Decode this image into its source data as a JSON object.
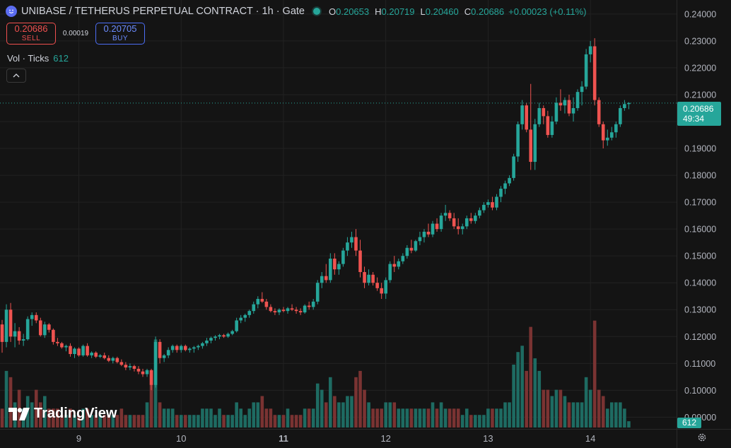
{
  "header": {
    "title": "UNIBASE / TETHERUS PERPETUAL CONTRACT · 1h · Gate",
    "ohlc": [
      {
        "k": "O",
        "v": "0.20653"
      },
      {
        "k": "H",
        "v": "0.20719"
      },
      {
        "k": "L",
        "v": "0.20460"
      },
      {
        "k": "C",
        "v": "0.20686"
      }
    ],
    "change": "+0.00023 (+0.11%)",
    "icon": "smiley-icon"
  },
  "trade": {
    "sell_price": "0.20686",
    "sell_label": "SELL",
    "spread": "0.00019",
    "buy_price": "0.20705",
    "buy_label": "BUY"
  },
  "volume_legend": {
    "label": "Vol · Ticks",
    "value": "612"
  },
  "last_price": {
    "price": "0.20686",
    "countdown": "49:34"
  },
  "volume_tag": "612",
  "brand": "TradingView",
  "colors": {
    "up": "#26a69a",
    "down": "#ef5350",
    "background": "#141414"
  },
  "chart_data": {
    "type": "candlestick",
    "title": "UNIBASE / TETHERUS PERPETUAL CONTRACT · 1h · Gate",
    "price_axis_ticks": [
      "0.24000",
      "0.23000",
      "0.22000",
      "0.21000",
      "0.20000",
      "0.19000",
      "0.18000",
      "0.17000",
      "0.16000",
      "0.15000",
      "0.14000",
      "0.13000",
      "0.12000",
      "0.11000",
      "0.10000",
      "0.09000"
    ],
    "ylim": [
      0.0855,
      0.2434
    ],
    "x_ticks": [
      {
        "label": "9",
        "index": 18,
        "bold": false
      },
      {
        "label": "10",
        "index": 42,
        "bold": false
      },
      {
        "label": "11",
        "index": 66,
        "bold": true
      },
      {
        "label": "12",
        "index": 90,
        "bold": false
      },
      {
        "label": "13",
        "index": 114,
        "bold": false
      },
      {
        "label": "14",
        "index": 138,
        "bold": false
      }
    ],
    "last_price": 0.20686,
    "grid": true,
    "candles": [
      [
        0.1245,
        0.1262,
        0.114,
        0.118,
        3
      ],
      [
        0.118,
        0.132,
        0.116,
        0.13,
        9
      ],
      [
        0.13,
        0.1325,
        0.118,
        0.12,
        8
      ],
      [
        0.12,
        0.125,
        0.116,
        0.122,
        4
      ],
      [
        0.122,
        0.1235,
        0.117,
        0.1185,
        6
      ],
      [
        0.1185,
        0.121,
        0.1165,
        0.119,
        3
      ],
      [
        0.119,
        0.1275,
        0.1185,
        0.1265,
        5
      ],
      [
        0.1265,
        0.129,
        0.124,
        0.128,
        4
      ],
      [
        0.128,
        0.129,
        0.125,
        0.126,
        6
      ],
      [
        0.126,
        0.127,
        0.12,
        0.1205,
        4
      ],
      [
        0.1205,
        0.1255,
        0.1195,
        0.1245,
        5
      ],
      [
        0.1245,
        0.125,
        0.1215,
        0.1225,
        3
      ],
      [
        0.1225,
        0.123,
        0.117,
        0.118,
        3
      ],
      [
        0.118,
        0.1195,
        0.1165,
        0.1175,
        3
      ],
      [
        0.1175,
        0.118,
        0.1155,
        0.116,
        2
      ],
      [
        0.116,
        0.117,
        0.1145,
        0.1165,
        2
      ],
      [
        0.1165,
        0.1175,
        0.1125,
        0.1135,
        3
      ],
      [
        0.1135,
        0.116,
        0.112,
        0.1155,
        2
      ],
      [
        0.1155,
        0.116,
        0.1125,
        0.113,
        2
      ],
      [
        0.113,
        0.117,
        0.1125,
        0.1165,
        3
      ],
      [
        0.1165,
        0.1175,
        0.1125,
        0.113,
        3
      ],
      [
        0.113,
        0.1145,
        0.112,
        0.114,
        2
      ],
      [
        0.114,
        0.1145,
        0.112,
        0.1125,
        2
      ],
      [
        0.1125,
        0.1135,
        0.112,
        0.113,
        2
      ],
      [
        0.113,
        0.114,
        0.1115,
        0.112,
        2
      ],
      [
        0.112,
        0.113,
        0.1105,
        0.111,
        2
      ],
      [
        0.111,
        0.1125,
        0.11,
        0.112,
        2
      ],
      [
        0.112,
        0.1125,
        0.11,
        0.1105,
        2
      ],
      [
        0.1105,
        0.1115,
        0.109,
        0.1095,
        3
      ],
      [
        0.1095,
        0.1105,
        0.1075,
        0.1085,
        2
      ],
      [
        0.1085,
        0.11,
        0.1075,
        0.109,
        2
      ],
      [
        0.109,
        0.1095,
        0.107,
        0.108,
        2
      ],
      [
        0.108,
        0.109,
        0.106,
        0.107,
        2
      ],
      [
        0.107,
        0.108,
        0.105,
        0.106,
        2
      ],
      [
        0.106,
        0.108,
        0.105,
        0.1075,
        4
      ],
      [
        0.1075,
        0.108,
        0.1,
        0.102,
        9
      ],
      [
        0.102,
        0.12,
        0.101,
        0.118,
        14
      ],
      [
        0.118,
        0.119,
        0.11,
        0.112,
        4
      ],
      [
        0.112,
        0.1135,
        0.1105,
        0.113,
        3
      ],
      [
        0.113,
        0.116,
        0.112,
        0.115,
        3
      ],
      [
        0.115,
        0.117,
        0.114,
        0.1165,
        3
      ],
      [
        0.1165,
        0.117,
        0.114,
        0.115,
        2
      ],
      [
        0.115,
        0.117,
        0.114,
        0.1165,
        2
      ],
      [
        0.1165,
        0.117,
        0.1145,
        0.115,
        2
      ],
      [
        0.115,
        0.116,
        0.114,
        0.1155,
        2
      ],
      [
        0.1155,
        0.1165,
        0.114,
        0.116,
        2
      ],
      [
        0.116,
        0.117,
        0.115,
        0.1165,
        2
      ],
      [
        0.1165,
        0.118,
        0.1155,
        0.1175,
        3
      ],
      [
        0.1175,
        0.1195,
        0.1165,
        0.1185,
        3
      ],
      [
        0.1185,
        0.12,
        0.1175,
        0.1195,
        3
      ],
      [
        0.1195,
        0.1205,
        0.1185,
        0.12,
        2
      ],
      [
        0.12,
        0.121,
        0.119,
        0.1205,
        3
      ],
      [
        0.1205,
        0.121,
        0.1195,
        0.12,
        2
      ],
      [
        0.12,
        0.1215,
        0.1195,
        0.121,
        2
      ],
      [
        0.121,
        0.1225,
        0.1205,
        0.122,
        2
      ],
      [
        0.122,
        0.127,
        0.1215,
        0.126,
        4
      ],
      [
        0.126,
        0.128,
        0.125,
        0.127,
        3
      ],
      [
        0.127,
        0.1285,
        0.1255,
        0.128,
        2
      ],
      [
        0.128,
        0.13,
        0.127,
        0.1295,
        3
      ],
      [
        0.1295,
        0.133,
        0.1285,
        0.132,
        4
      ],
      [
        0.132,
        0.135,
        0.1305,
        0.134,
        4
      ],
      [
        0.134,
        0.1365,
        0.1325,
        0.133,
        5
      ],
      [
        0.133,
        0.134,
        0.13,
        0.131,
        3
      ],
      [
        0.131,
        0.132,
        0.129,
        0.1295,
        3
      ],
      [
        0.1295,
        0.1305,
        0.128,
        0.129,
        2
      ],
      [
        0.129,
        0.1305,
        0.128,
        0.13,
        2
      ],
      [
        0.13,
        0.131,
        0.129,
        0.1295,
        2
      ],
      [
        0.1295,
        0.131,
        0.1285,
        0.1305,
        3
      ],
      [
        0.1305,
        0.132,
        0.1295,
        0.13,
        2
      ],
      [
        0.13,
        0.131,
        0.1285,
        0.1295,
        2
      ],
      [
        0.1295,
        0.1305,
        0.128,
        0.129,
        2
      ],
      [
        0.129,
        0.132,
        0.1285,
        0.1315,
        3
      ],
      [
        0.1315,
        0.133,
        0.13,
        0.131,
        3
      ],
      [
        0.131,
        0.134,
        0.13,
        0.133,
        3
      ],
      [
        0.133,
        0.141,
        0.132,
        0.14,
        7
      ],
      [
        0.14,
        0.144,
        0.138,
        0.1425,
        6
      ],
      [
        0.1425,
        0.147,
        0.14,
        0.141,
        4
      ],
      [
        0.141,
        0.151,
        0.14,
        0.149,
        8
      ],
      [
        0.149,
        0.151,
        0.143,
        0.145,
        5
      ],
      [
        0.145,
        0.148,
        0.143,
        0.147,
        4
      ],
      [
        0.147,
        0.153,
        0.146,
        0.152,
        4
      ],
      [
        0.152,
        0.157,
        0.15,
        0.155,
        5
      ],
      [
        0.155,
        0.159,
        0.153,
        0.157,
        5
      ],
      [
        0.157,
        0.16,
        0.15,
        0.152,
        8
      ],
      [
        0.152,
        0.156,
        0.142,
        0.144,
        9
      ],
      [
        0.144,
        0.146,
        0.138,
        0.14,
        6
      ],
      [
        0.14,
        0.145,
        0.139,
        0.143,
        4
      ],
      [
        0.143,
        0.144,
        0.139,
        0.14,
        3
      ],
      [
        0.14,
        0.142,
        0.137,
        0.138,
        3
      ],
      [
        0.138,
        0.14,
        0.134,
        0.136,
        3
      ],
      [
        0.136,
        0.142,
        0.134,
        0.141,
        4
      ],
      [
        0.141,
        0.148,
        0.14,
        0.147,
        4
      ],
      [
        0.147,
        0.15,
        0.144,
        0.146,
        4
      ],
      [
        0.146,
        0.149,
        0.145,
        0.148,
        3
      ],
      [
        0.148,
        0.151,
        0.147,
        0.15,
        3
      ],
      [
        0.15,
        0.154,
        0.149,
        0.153,
        3
      ],
      [
        0.153,
        0.156,
        0.151,
        0.152,
        3
      ],
      [
        0.152,
        0.156,
        0.1515,
        0.1555,
        3
      ],
      [
        0.1555,
        0.159,
        0.154,
        0.157,
        3
      ],
      [
        0.157,
        0.16,
        0.155,
        0.159,
        3
      ],
      [
        0.159,
        0.162,
        0.157,
        0.158,
        3
      ],
      [
        0.158,
        0.163,
        0.157,
        0.162,
        4
      ],
      [
        0.162,
        0.164,
        0.159,
        0.16,
        3
      ],
      [
        0.16,
        0.166,
        0.159,
        0.165,
        4
      ],
      [
        0.165,
        0.169,
        0.163,
        0.166,
        3
      ],
      [
        0.166,
        0.167,
        0.163,
        0.164,
        3
      ],
      [
        0.164,
        0.166,
        0.16,
        0.161,
        3
      ],
      [
        0.161,
        0.164,
        0.158,
        0.16,
        3
      ],
      [
        0.16,
        0.162,
        0.158,
        0.161,
        2
      ],
      [
        0.161,
        0.165,
        0.16,
        0.164,
        3
      ],
      [
        0.164,
        0.166,
        0.162,
        0.163,
        2
      ],
      [
        0.163,
        0.166,
        0.162,
        0.165,
        2
      ],
      [
        0.165,
        0.168,
        0.164,
        0.167,
        2
      ],
      [
        0.167,
        0.17,
        0.166,
        0.169,
        2
      ],
      [
        0.169,
        0.171,
        0.168,
        0.17,
        3
      ],
      [
        0.17,
        0.172,
        0.167,
        0.168,
        3
      ],
      [
        0.168,
        0.173,
        0.167,
        0.172,
        3
      ],
      [
        0.172,
        0.176,
        0.17,
        0.175,
        3
      ],
      [
        0.175,
        0.178,
        0.173,
        0.177,
        4
      ],
      [
        0.177,
        0.18,
        0.176,
        0.179,
        4
      ],
      [
        0.179,
        0.188,
        0.178,
        0.187,
        10
      ],
      [
        0.187,
        0.2,
        0.185,
        0.199,
        12
      ],
      [
        0.199,
        0.208,
        0.197,
        0.206,
        13
      ],
      [
        0.206,
        0.207,
        0.196,
        0.197,
        9
      ],
      [
        0.197,
        0.214,
        0.182,
        0.185,
        16
      ],
      [
        0.185,
        0.201,
        0.182,
        0.199,
        11
      ],
      [
        0.199,
        0.207,
        0.198,
        0.205,
        9
      ],
      [
        0.205,
        0.206,
        0.199,
        0.202,
        6
      ],
      [
        0.202,
        0.204,
        0.194,
        0.195,
        6
      ],
      [
        0.195,
        0.202,
        0.194,
        0.2,
        5
      ],
      [
        0.2,
        0.209,
        0.199,
        0.207,
        6
      ],
      [
        0.207,
        0.212,
        0.204,
        0.206,
        6
      ],
      [
        0.206,
        0.209,
        0.203,
        0.208,
        5
      ],
      [
        0.208,
        0.21,
        0.202,
        0.203,
        4
      ],
      [
        0.203,
        0.209,
        0.2,
        0.205,
        4
      ],
      [
        0.205,
        0.212,
        0.204,
        0.211,
        4
      ],
      [
        0.211,
        0.215,
        0.206,
        0.213,
        4
      ],
      [
        0.213,
        0.227,
        0.212,
        0.225,
        8
      ],
      [
        0.225,
        0.23,
        0.222,
        0.228,
        6
      ],
      [
        0.228,
        0.231,
        0.206,
        0.208,
        17
      ],
      [
        0.208,
        0.209,
        0.198,
        0.199,
        6
      ],
      [
        0.199,
        0.2,
        0.19,
        0.193,
        5
      ],
      [
        0.193,
        0.197,
        0.191,
        0.194,
        3
      ],
      [
        0.194,
        0.198,
        0.193,
        0.196,
        4
      ],
      [
        0.196,
        0.2,
        0.194,
        0.199,
        4
      ],
      [
        0.199,
        0.206,
        0.198,
        0.205,
        4
      ],
      [
        0.205,
        0.208,
        0.204,
        0.2065,
        3
      ],
      [
        0.2065,
        0.2072,
        0.2046,
        0.2069,
        1
      ]
    ]
  }
}
